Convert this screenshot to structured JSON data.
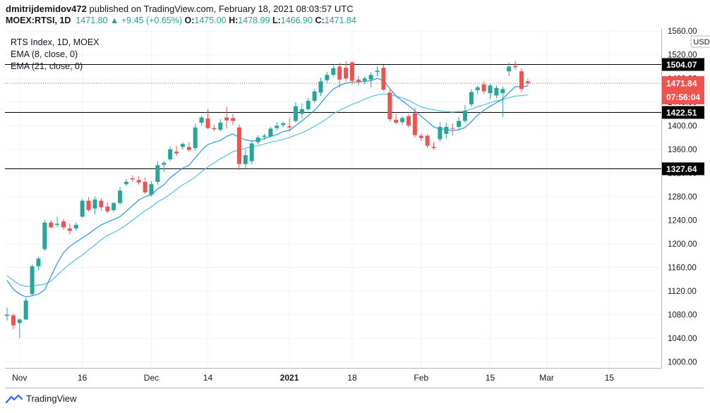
{
  "header": {
    "user": "dmitrijdemidov472",
    "published_text": "published on TradingView.com, February 18, 2021 08:03:57 UTC",
    "symbol": "MOEX:RTSI, 1D",
    "price": "1471.80",
    "change_arrow": "▲",
    "change": "+9.45 (+0.65%)",
    "open_label": "O:",
    "open": "1475.00",
    "high_label": "H:",
    "high": "1478.99",
    "low_label": "L:",
    "low": "1466.90",
    "close_label": "C:",
    "close": "1471.84"
  },
  "legend": {
    "title": "RTS Index, 1D, MOEX",
    "ema1": "EMA (8, close, 0)",
    "ema2": "EMA (21, close, 0)"
  },
  "footer": {
    "brand": "TradingView"
  },
  "colors": {
    "up": "#26a69a",
    "down": "#ef5350",
    "ema_fast": "#2196f3",
    "ema_slow": "#4dc4e0",
    "price_line": "#ef5350",
    "level": "#000000"
  },
  "chart_data": {
    "type": "candlestick",
    "title": "RTS Index, 1D, MOEX",
    "currency": "USD",
    "ylim": [
      990,
      1565
    ],
    "y_ticks": [
      1000,
      1040,
      1080,
      1120,
      1160,
      1200,
      1240,
      1280,
      1320,
      1360,
      1400,
      1440,
      1480,
      1520,
      1560
    ],
    "y_tick_labels": [
      "1000.00",
      "1040.00",
      "1080.00",
      "1120.00",
      "1160.00",
      "1200.00",
      "1240.00",
      "1280.00",
      "1320.00",
      "1360.00",
      "1400.00",
      "1440.00",
      "1480.00",
      "1520.00",
      "1560.00"
    ],
    "x_labels": [
      {
        "label": "Nov",
        "index": 2
      },
      {
        "label": "16",
        "index": 12
      },
      {
        "label": "Dec",
        "index": 23
      },
      {
        "label": "14",
        "index": 32
      },
      {
        "label": "2021",
        "index": 45
      },
      {
        "label": "18",
        "index": 55
      },
      {
        "label": "Feb",
        "index": 66
      },
      {
        "label": "15",
        "index": 77
      },
      {
        "label": "Mar",
        "index": 86
      },
      {
        "label": "15",
        "index": 96
      }
    ],
    "candles": [
      {
        "o": 1078,
        "h": 1092,
        "l": 1070,
        "c": 1080
      },
      {
        "o": 1079,
        "h": 1082,
        "l": 1055,
        "c": 1062
      },
      {
        "o": 1066,
        "h": 1074,
        "l": 1040,
        "c": 1072
      },
      {
        "o": 1072,
        "h": 1108,
        "l": 1071,
        "c": 1104
      },
      {
        "o": 1115,
        "h": 1165,
        "l": 1112,
        "c": 1162
      },
      {
        "o": 1162,
        "h": 1178,
        "l": 1155,
        "c": 1175
      },
      {
        "o": 1191,
        "h": 1240,
        "l": 1188,
        "c": 1236
      },
      {
        "o": 1236,
        "h": 1240,
        "l": 1226,
        "c": 1228
      },
      {
        "o": 1232,
        "h": 1246,
        "l": 1228,
        "c": 1234
      },
      {
        "o": 1238,
        "h": 1242,
        "l": 1224,
        "c": 1228
      },
      {
        "o": 1226,
        "h": 1234,
        "l": 1216,
        "c": 1222
      },
      {
        "o": 1226,
        "h": 1236,
        "l": 1222,
        "c": 1232
      },
      {
        "o": 1246,
        "h": 1276,
        "l": 1244,
        "c": 1273
      },
      {
        "o": 1273,
        "h": 1279,
        "l": 1255,
        "c": 1257
      },
      {
        "o": 1260,
        "h": 1280,
        "l": 1250,
        "c": 1275
      },
      {
        "o": 1273,
        "h": 1278,
        "l": 1256,
        "c": 1262
      },
      {
        "o": 1263,
        "h": 1270,
        "l": 1252,
        "c": 1255
      },
      {
        "o": 1257,
        "h": 1271,
        "l": 1254,
        "c": 1269
      },
      {
        "o": 1269,
        "h": 1296,
        "l": 1266,
        "c": 1290
      },
      {
        "o": 1301,
        "h": 1310,
        "l": 1298,
        "c": 1305
      },
      {
        "o": 1311,
        "h": 1316,
        "l": 1305,
        "c": 1309
      },
      {
        "o": 1308,
        "h": 1314,
        "l": 1300,
        "c": 1304
      },
      {
        "o": 1305,
        "h": 1312,
        "l": 1285,
        "c": 1287
      },
      {
        "o": 1283,
        "h": 1306,
        "l": 1280,
        "c": 1301
      },
      {
        "o": 1305,
        "h": 1340,
        "l": 1300,
        "c": 1333
      },
      {
        "o": 1334,
        "h": 1340,
        "l": 1322,
        "c": 1337
      },
      {
        "o": 1343,
        "h": 1365,
        "l": 1340,
        "c": 1360
      },
      {
        "o": 1356,
        "h": 1366,
        "l": 1349,
        "c": 1353
      },
      {
        "o": 1364,
        "h": 1372,
        "l": 1360,
        "c": 1369
      },
      {
        "o": 1364,
        "h": 1372,
        "l": 1355,
        "c": 1359
      },
      {
        "o": 1362,
        "h": 1403,
        "l": 1358,
        "c": 1397
      },
      {
        "o": 1405,
        "h": 1417,
        "l": 1400,
        "c": 1414
      },
      {
        "o": 1412,
        "h": 1428,
        "l": 1394,
        "c": 1396
      },
      {
        "o": 1396,
        "h": 1402,
        "l": 1390,
        "c": 1394
      },
      {
        "o": 1393,
        "h": 1411,
        "l": 1391,
        "c": 1405
      },
      {
        "o": 1414,
        "h": 1432,
        "l": 1395,
        "c": 1409
      },
      {
        "o": 1413,
        "h": 1420,
        "l": 1401,
        "c": 1408
      },
      {
        "o": 1397,
        "h": 1402,
        "l": 1325,
        "c": 1335
      },
      {
        "o": 1335,
        "h": 1360,
        "l": 1328,
        "c": 1350
      },
      {
        "o": 1340,
        "h": 1374,
        "l": 1335,
        "c": 1370
      },
      {
        "o": 1372,
        "h": 1384,
        "l": 1368,
        "c": 1380
      },
      {
        "o": 1381,
        "h": 1386,
        "l": 1376,
        "c": 1383
      },
      {
        "o": 1382,
        "h": 1398,
        "l": 1380,
        "c": 1395
      },
      {
        "o": 1396,
        "h": 1406,
        "l": 1392,
        "c": 1400
      },
      {
        "o": 1401,
        "h": 1407,
        "l": 1397,
        "c": 1404
      },
      {
        "o": 1399,
        "h": 1413,
        "l": 1390,
        "c": 1397
      },
      {
        "o": 1408,
        "h": 1440,
        "l": 1405,
        "c": 1433
      },
      {
        "o": 1420,
        "h": 1438,
        "l": 1412,
        "c": 1428
      },
      {
        "o": 1428,
        "h": 1447,
        "l": 1425,
        "c": 1442
      },
      {
        "o": 1442,
        "h": 1462,
        "l": 1438,
        "c": 1458
      },
      {
        "o": 1456,
        "h": 1481,
        "l": 1450,
        "c": 1475
      },
      {
        "o": 1477,
        "h": 1491,
        "l": 1473,
        "c": 1486
      },
      {
        "o": 1486,
        "h": 1502,
        "l": 1483,
        "c": 1497
      },
      {
        "o": 1500,
        "h": 1506,
        "l": 1464,
        "c": 1478
      },
      {
        "o": 1498,
        "h": 1509,
        "l": 1475,
        "c": 1480
      },
      {
        "o": 1507,
        "h": 1509,
        "l": 1470,
        "c": 1476
      },
      {
        "o": 1478,
        "h": 1484,
        "l": 1468,
        "c": 1475
      },
      {
        "o": 1476,
        "h": 1484,
        "l": 1470,
        "c": 1480
      },
      {
        "o": 1478,
        "h": 1490,
        "l": 1465,
        "c": 1486
      },
      {
        "o": 1491,
        "h": 1500,
        "l": 1484,
        "c": 1493
      },
      {
        "o": 1498,
        "h": 1503,
        "l": 1459,
        "c": 1461
      },
      {
        "o": 1456,
        "h": 1461,
        "l": 1407,
        "c": 1411
      },
      {
        "o": 1410,
        "h": 1420,
        "l": 1403,
        "c": 1405
      },
      {
        "o": 1406,
        "h": 1416,
        "l": 1401,
        "c": 1413
      },
      {
        "o": 1416,
        "h": 1420,
        "l": 1397,
        "c": 1400
      },
      {
        "o": 1421,
        "h": 1430,
        "l": 1380,
        "c": 1384
      },
      {
        "o": 1383,
        "h": 1387,
        "l": 1374,
        "c": 1379
      },
      {
        "o": 1383,
        "h": 1386,
        "l": 1362,
        "c": 1366
      },
      {
        "o": 1364,
        "h": 1372,
        "l": 1359,
        "c": 1362
      },
      {
        "o": 1377,
        "h": 1406,
        "l": 1373,
        "c": 1398
      },
      {
        "o": 1386,
        "h": 1405,
        "l": 1378,
        "c": 1398
      },
      {
        "o": 1396,
        "h": 1404,
        "l": 1383,
        "c": 1395
      },
      {
        "o": 1398,
        "h": 1415,
        "l": 1392,
        "c": 1408
      },
      {
        "o": 1408,
        "h": 1435,
        "l": 1405,
        "c": 1425
      },
      {
        "o": 1436,
        "h": 1462,
        "l": 1432,
        "c": 1457
      },
      {
        "o": 1460,
        "h": 1467,
        "l": 1453,
        "c": 1465
      },
      {
        "o": 1470,
        "h": 1475,
        "l": 1453,
        "c": 1458
      },
      {
        "o": 1455,
        "h": 1472,
        "l": 1445,
        "c": 1468
      },
      {
        "o": 1451,
        "h": 1468,
        "l": 1446,
        "c": 1464
      },
      {
        "o": 1455,
        "h": 1466,
        "l": 1415,
        "c": 1462
      },
      {
        "o": 1492,
        "h": 1507,
        "l": 1484,
        "c": 1500
      },
      {
        "o": 1501,
        "h": 1509,
        "l": 1494,
        "c": 1499
      },
      {
        "o": 1492,
        "h": 1497,
        "l": 1456,
        "c": 1462
      },
      {
        "o": 1475.0,
        "h": 1478.99,
        "l": 1466.9,
        "c": 1471.84
      }
    ],
    "ema_8": [
      1138,
      1123,
      1115,
      1110,
      1112,
      1115,
      1122,
      1145,
      1167,
      1185,
      1196,
      1203,
      1210,
      1217,
      1225,
      1232,
      1237,
      1241,
      1246,
      1255,
      1265,
      1274,
      1280,
      1283,
      1293,
      1300,
      1312,
      1320,
      1328,
      1333,
      1346,
      1358,
      1368,
      1372,
      1375,
      1382,
      1386,
      1380,
      1376,
      1374,
      1375,
      1378,
      1382,
      1385,
      1390,
      1392,
      1400,
      1408,
      1417,
      1426,
      1438,
      1451,
      1462,
      1468,
      1472,
      1474,
      1474,
      1475,
      1476,
      1480,
      1476,
      1463,
      1450,
      1442,
      1434,
      1425,
      1416,
      1407,
      1398,
      1394,
      1394,
      1392,
      1393,
      1397,
      1407,
      1418,
      1426,
      1433,
      1439,
      1445,
      1456,
      1466,
      1466,
      1467
    ],
    "ema_21": [
      1146,
      1138,
      1131,
      1128,
      1128,
      1130,
      1132,
      1137,
      1147,
      1157,
      1166,
      1174,
      1181,
      1190,
      1198,
      1207,
      1214,
      1219,
      1225,
      1232,
      1240,
      1248,
      1256,
      1263,
      1271,
      1277,
      1284,
      1292,
      1300,
      1306,
      1313,
      1322,
      1330,
      1337,
      1344,
      1350,
      1356,
      1359,
      1362,
      1364,
      1366,
      1369,
      1372,
      1374,
      1377,
      1380,
      1384,
      1388,
      1393,
      1399,
      1405,
      1412,
      1420,
      1426,
      1431,
      1436,
      1440,
      1445,
      1449,
      1452,
      1454,
      1452,
      1450,
      1447,
      1443,
      1437,
      1432,
      1429,
      1427,
      1425,
      1424,
      1423,
      1424,
      1425,
      1428,
      1432,
      1435,
      1439,
      1442,
      1444,
      1447,
      1450,
      1451,
      1452
    ],
    "levels": [
      {
        "label": "1504.07",
        "value": 1504.07
      },
      {
        "label": "1422.51",
        "value": 1422.51
      },
      {
        "label": "1327.64",
        "value": 1327.64
      }
    ],
    "last_price": {
      "label": "1471.84",
      "value": 1471.84,
      "countdown": "07:56:04"
    }
  }
}
